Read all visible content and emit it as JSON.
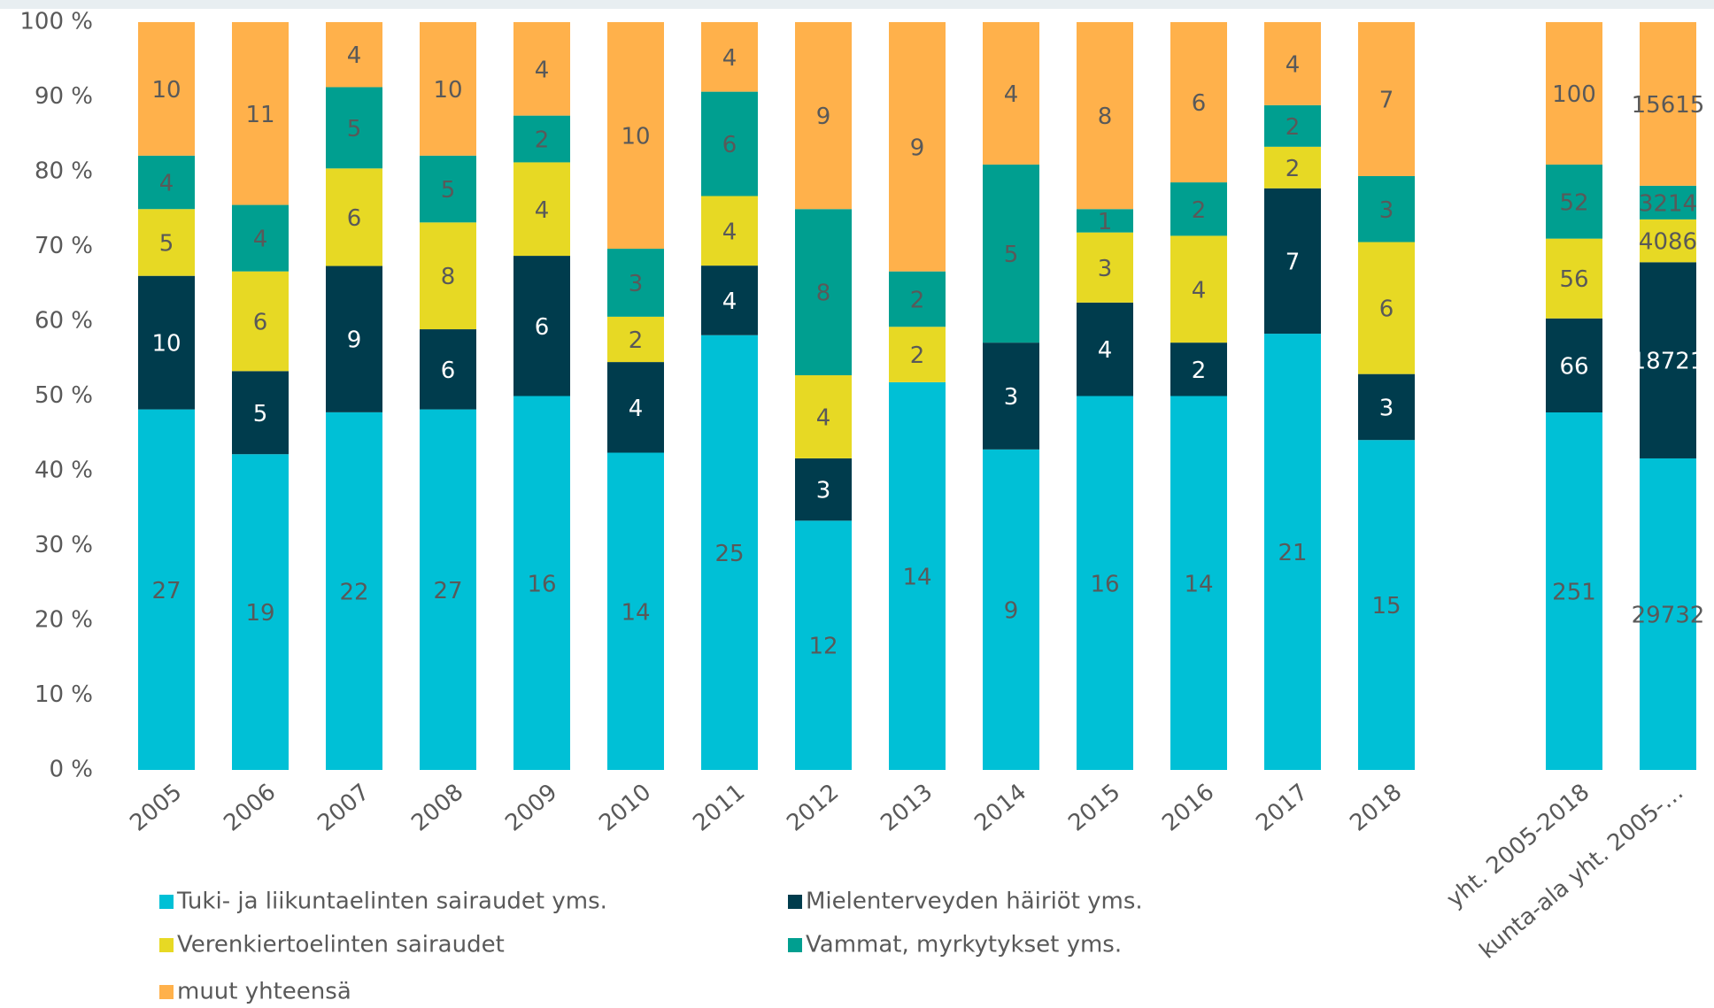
{
  "chart_data": {
    "type": "bar",
    "stacking": "percent",
    "categories": [
      "2005",
      "2006",
      "2007",
      "2008",
      "2009",
      "2010",
      "2011",
      "2012",
      "2013",
      "2014",
      "2015",
      "2016",
      "2017",
      "2018",
      null,
      "yht. 2005-2018",
      "kunta-ala yht. 2005-…"
    ],
    "series": [
      {
        "name": "Tuki- ja liikuntaelinten sairaudet yms.",
        "color": "#00c0d6",
        "values": [
          27,
          19,
          22,
          27,
          16,
          14,
          25,
          12,
          14,
          9,
          16,
          14,
          21,
          15,
          null,
          251,
          29732
        ]
      },
      {
        "name": "Mielenterveyden häiriöt yms.",
        "color": "#003c4d",
        "values": [
          10,
          5,
          9,
          6,
          6,
          4,
          4,
          3,
          null,
          3,
          4,
          2,
          7,
          3,
          null,
          66,
          18721
        ]
      },
      {
        "name": "Verenkiertoelinten sairaudet",
        "color": "#e7d924",
        "values": [
          5,
          6,
          6,
          8,
          4,
          2,
          4,
          4,
          2,
          null,
          3,
          4,
          2,
          6,
          null,
          56,
          4086
        ]
      },
      {
        "name": "Vammat, myrkytykset yms.",
        "color": "#009f90",
        "values": [
          4,
          4,
          5,
          5,
          2,
          3,
          6,
          8,
          2,
          5,
          1,
          2,
          2,
          3,
          null,
          52,
          3214
        ]
      },
      {
        "name": "muut yhteensä",
        "color": "#ffb14b",
        "values": [
          10,
          11,
          4,
          10,
          4,
          10,
          4,
          9,
          9,
          4,
          8,
          6,
          4,
          7,
          null,
          100,
          15615
        ]
      }
    ],
    "ylim": [
      0,
      100
    ],
    "yticks": [
      {
        "value": 0,
        "label": "0 %"
      },
      {
        "value": 10,
        "label": "10 %"
      },
      {
        "value": 20,
        "label": "20 %"
      },
      {
        "value": 30,
        "label": "30 %"
      },
      {
        "value": 40,
        "label": "40 %"
      },
      {
        "value": 50,
        "label": "50 %"
      },
      {
        "value": 60,
        "label": "60 %"
      },
      {
        "value": 70,
        "label": "70 %"
      },
      {
        "value": 80,
        "label": "80 %"
      },
      {
        "value": 90,
        "label": "90 %"
      },
      {
        "value": 100,
        "label": "100 %"
      }
    ],
    "grid": false
  }
}
